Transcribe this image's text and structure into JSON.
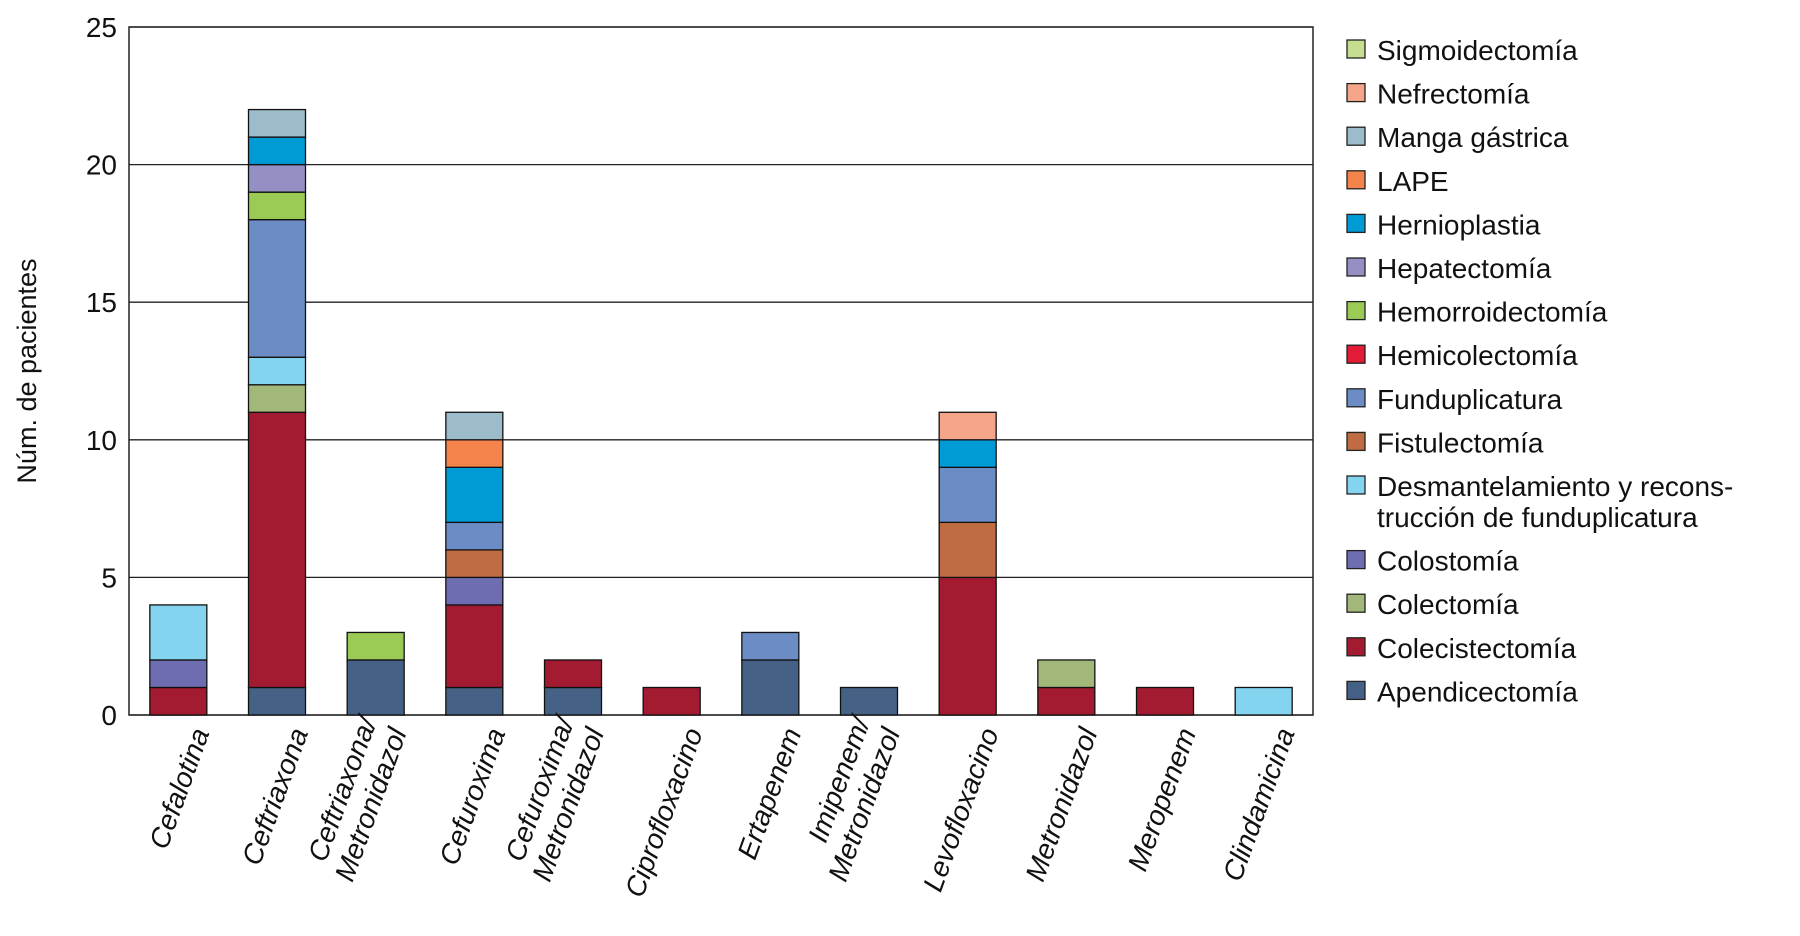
{
  "chart_data": {
    "type": "bar",
    "stacked": true,
    "title": "",
    "xlabel": "",
    "ylabel": "Núm. de pacientes",
    "ylim": [
      0,
      25
    ],
    "yticks": [
      0,
      5,
      10,
      15,
      20,
      25
    ],
    "grid": true,
    "legend_position": "right",
    "categories": [
      "Cefalotina",
      "Ceftriaxona",
      "Ceftriaxona/\nMetronidazol",
      "Cefuroxima",
      "Cefuroxima/\nMetronidazol",
      "Ciprofloxacino",
      "Ertapenem",
      "Imipenem/\nMetronidazol",
      "Levofloxacino",
      "Metronidazol",
      "Meropenem",
      "Clindamicina"
    ],
    "series": [
      {
        "name": "Apendicectomía",
        "color": "#456186",
        "values": [
          0,
          1,
          2,
          1,
          1,
          0,
          2,
          1,
          0,
          0,
          0,
          0
        ]
      },
      {
        "name": "Colecistectomía",
        "color": "#a31b30",
        "values": [
          1,
          10,
          0,
          3,
          1,
          1,
          0,
          0,
          5,
          1,
          1,
          0
        ]
      },
      {
        "name": "Colectomía",
        "color": "#a2b87a",
        "values": [
          0,
          1,
          0,
          0,
          0,
          0,
          0,
          0,
          0,
          1,
          0,
          0
        ]
      },
      {
        "name": "Colostomía",
        "color": "#6f6db2",
        "values": [
          1,
          0,
          0,
          1,
          0,
          0,
          0,
          0,
          0,
          0,
          0,
          0
        ]
      },
      {
        "name": "Desmantelamiento y recons-\ntrucción de funduplicatura",
        "color": "#84d4ef",
        "values": [
          2,
          1,
          0,
          0,
          0,
          0,
          0,
          0,
          0,
          0,
          0,
          1
        ]
      },
      {
        "name": "Fistulectomía",
        "color": "#c06c42",
        "values": [
          0,
          0,
          0,
          1,
          0,
          0,
          0,
          0,
          2,
          0,
          0,
          0
        ]
      },
      {
        "name": "Funduplicatura",
        "color": "#6b8cc4",
        "values": [
          0,
          5,
          0,
          1,
          0,
          0,
          1,
          0,
          2,
          0,
          0,
          0
        ]
      },
      {
        "name": "Hemicolectomía",
        "color": "#e31b36",
        "values": [
          0,
          0,
          0,
          0,
          0,
          0,
          0,
          0,
          0,
          0,
          0,
          0
        ]
      },
      {
        "name": "Hemorroidectomía",
        "color": "#9bca55",
        "values": [
          0,
          1,
          1,
          0,
          0,
          0,
          0,
          0,
          0,
          0,
          0,
          0
        ]
      },
      {
        "name": "Hepatectomía",
        "color": "#9590c4",
        "values": [
          0,
          1,
          0,
          0,
          0,
          0,
          0,
          0,
          0,
          0,
          0,
          0
        ]
      },
      {
        "name": "Hernioplastia",
        "color": "#009bd5",
        "values": [
          0,
          1,
          0,
          2,
          0,
          0,
          0,
          0,
          1,
          0,
          0,
          0
        ]
      },
      {
        "name": "LAPE",
        "color": "#f4844c",
        "values": [
          0,
          0,
          0,
          1,
          0,
          0,
          0,
          0,
          0,
          0,
          0,
          0
        ]
      },
      {
        "name": "Manga gástrica",
        "color": "#9dbccb",
        "values": [
          0,
          1,
          0,
          1,
          0,
          0,
          0,
          0,
          0,
          0,
          0,
          0
        ]
      },
      {
        "name": "Nefrectomía",
        "color": "#f4a58a",
        "values": [
          0,
          0,
          0,
          0,
          0,
          0,
          0,
          0,
          1,
          0,
          0,
          0
        ]
      },
      {
        "name": "Sigmoidectomía",
        "color": "#c5de8f",
        "values": [
          0,
          0,
          0,
          0,
          0,
          0,
          0,
          0,
          0,
          0,
          0,
          0
        ]
      }
    ]
  }
}
